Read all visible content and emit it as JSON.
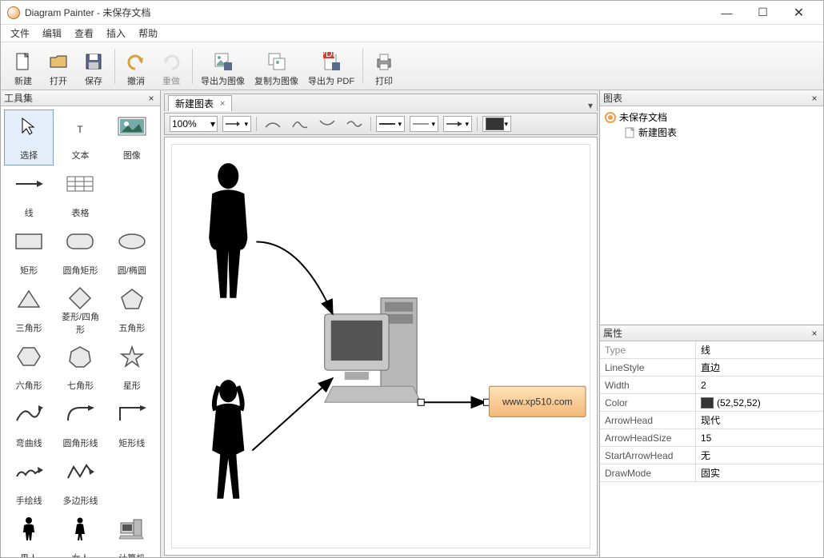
{
  "window": {
    "title": "Diagram Painter - 未保存文档",
    "min": "—",
    "max": "☐",
    "close": "✕"
  },
  "menu": [
    "文件",
    "编辑",
    "查看",
    "插入",
    "帮助"
  ],
  "toolbar": [
    {
      "id": "new",
      "label": "新建",
      "glyph": "file"
    },
    {
      "id": "open",
      "label": "打开",
      "glyph": "folder"
    },
    {
      "id": "save",
      "label": "保存",
      "glyph": "disk"
    },
    {
      "sep": true
    },
    {
      "id": "undo",
      "label": "撤消",
      "glyph": "undo"
    },
    {
      "id": "redo",
      "label": "重做",
      "glyph": "redo",
      "disabled": true
    },
    {
      "sep": true
    },
    {
      "id": "expimg",
      "label": "导出为图像",
      "glyph": "expimg"
    },
    {
      "id": "copyimg",
      "label": "复制为图像",
      "glyph": "copyimg"
    },
    {
      "id": "exppdf",
      "label": "导出为 PDF",
      "glyph": "pdf"
    },
    {
      "sep": true
    },
    {
      "id": "print",
      "label": "打印",
      "glyph": "print"
    }
  ],
  "toolbox": {
    "title": "工具集",
    "items": [
      {
        "id": "select",
        "label": "选择",
        "glyph": "cursor",
        "selected": true
      },
      {
        "id": "text",
        "label": "文本",
        "glyph": "T"
      },
      {
        "id": "image",
        "label": "图像",
        "glyph": "img"
      },
      {
        "id": "line",
        "label": "线",
        "glyph": "arrow"
      },
      {
        "id": "table",
        "label": "表格",
        "glyph": "grid"
      },
      {
        "id": "blank1",
        "label": "",
        "glyph": ""
      },
      {
        "id": "rect",
        "label": "矩形",
        "glyph": "rect"
      },
      {
        "id": "rrect",
        "label": "圆角矩形",
        "glyph": "rrect"
      },
      {
        "id": "ellipse",
        "label": "圆/椭圆",
        "glyph": "ellipse"
      },
      {
        "id": "tri",
        "label": "三角形",
        "glyph": "tri"
      },
      {
        "id": "diamond",
        "label": "菱形/四角形",
        "glyph": "diamond"
      },
      {
        "id": "pent",
        "label": "五角形",
        "glyph": "pent"
      },
      {
        "id": "hex",
        "label": "六角形",
        "glyph": "hex"
      },
      {
        "id": "hept",
        "label": "七角形",
        "glyph": "hept"
      },
      {
        "id": "star",
        "label": "星形",
        "glyph": "star"
      },
      {
        "id": "curve",
        "label": "弯曲线",
        "glyph": "curve"
      },
      {
        "id": "rcurve",
        "label": "圆角形线",
        "glyph": "rcurve"
      },
      {
        "id": "rline",
        "label": "矩形线",
        "glyph": "rline"
      },
      {
        "id": "hand",
        "label": "手绘线",
        "glyph": "hand"
      },
      {
        "id": "poly",
        "label": "多边形线",
        "glyph": "poly"
      },
      {
        "id": "blank2",
        "label": "",
        "glyph": ""
      },
      {
        "id": "man",
        "label": "男人",
        "glyph": "man"
      },
      {
        "id": "woman",
        "label": "女人",
        "glyph": "woman"
      },
      {
        "id": "pc",
        "label": "计算机",
        "glyph": "pc"
      }
    ]
  },
  "canvas": {
    "tab": "新建图表",
    "zoom": "100%",
    "node_text": "www.xp510.com",
    "node_fill_top": "#ffe3b8",
    "node_fill_bottom": "#f3b878",
    "line_color": "#343434",
    "arrow_stroke": "#000000",
    "background": "#ffffff"
  },
  "diagram_panel": {
    "title": "图表",
    "root": "未保存文档",
    "child": "新建图表"
  },
  "props": {
    "title": "属性",
    "rows": [
      {
        "k": "Type",
        "v": "线",
        "header": true
      },
      {
        "k": "LineStyle",
        "v": "直边"
      },
      {
        "k": "Width",
        "v": "2"
      },
      {
        "k": "Color",
        "v": "(52,52,52)",
        "swatch": "#343434"
      },
      {
        "k": "ArrowHead",
        "v": "现代"
      },
      {
        "k": "ArrowHeadSize",
        "v": "15"
      },
      {
        "k": "StartArrowHead",
        "v": "无"
      },
      {
        "k": "DrawMode",
        "v": "固实"
      }
    ]
  }
}
